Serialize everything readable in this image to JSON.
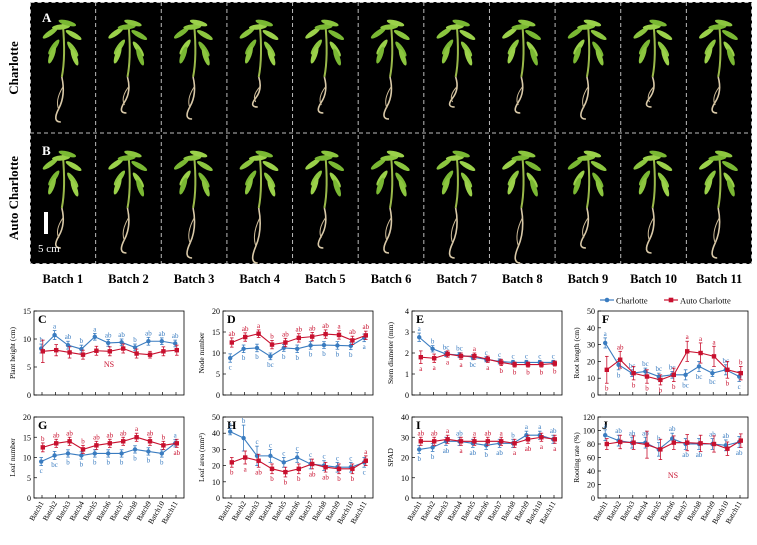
{
  "photo_panel": {
    "row_labels": [
      "Charlotte",
      "Auto Charlotte"
    ],
    "panel_letters": [
      "A",
      "B"
    ],
    "scale_bar_label": "5 cm"
  },
  "batches": [
    "Batch 1",
    "Batch 2",
    "Batch 3",
    "Batch 4",
    "Batch 5",
    "Batch 6",
    "Batch 7",
    "Batch 8",
    "Batch 9",
    "Batch 10",
    "Batch 11"
  ],
  "legend": {
    "items": [
      {
        "name": "Charlotte",
        "color": "#3A7CC0"
      },
      {
        "name": "Auto Charlotte",
        "color": "#C8102E"
      }
    ]
  },
  "chart_data": [
    {
      "type": "line",
      "panel": "C",
      "ylabel": "Plant height (cm)",
      "ylim": [
        0,
        15
      ],
      "yticks": [
        0,
        5,
        10,
        15
      ],
      "categories": [
        "Batch1",
        "Batch2",
        "Batch3",
        "Batch4",
        "Batch5",
        "Batch6",
        "Batch7",
        "Batch8",
        "Batch9",
        "Batch10",
        "Batch11"
      ],
      "series": [
        {
          "name": "Charlotte",
          "values": [
            8.3,
            10.7,
            8.9,
            8.2,
            10.4,
            9.3,
            9.4,
            8.5,
            9.6,
            9.6,
            9.2
          ],
          "err": [
            0.8,
            0.8,
            0.7,
            0.7,
            0.6,
            0.6,
            0.6,
            0.6,
            0.7,
            0.6,
            0.6
          ],
          "letters": [
            "b",
            "a",
            "ab",
            "b",
            "a",
            "ab",
            "ab",
            "b",
            "ab",
            "ab",
            "ab"
          ]
        },
        {
          "name": "Auto Charlotte",
          "values": [
            7.8,
            8.0,
            7.6,
            7.2,
            7.9,
            7.8,
            8.3,
            7.4,
            7.2,
            7.8,
            8.0
          ],
          "err": [
            2.0,
            1.0,
            1.0,
            0.8,
            0.8,
            0.8,
            0.8,
            0.8,
            0.6,
            0.8,
            0.9
          ],
          "letters": []
        }
      ],
      "annotation": "NS"
    },
    {
      "type": "line",
      "panel": "D",
      "ylabel": "Node number",
      "ylim": [
        0,
        20
      ],
      "yticks": [
        0,
        5,
        10,
        15,
        20
      ],
      "categories": [
        "Batch1",
        "Batch2",
        "Batch3",
        "Batch4",
        "Batch5",
        "Batch6",
        "Batch7",
        "Batch8",
        "Batch9",
        "Batch10",
        "Batch11"
      ],
      "series": [
        {
          "name": "Charlotte",
          "values": [
            8.8,
            11.0,
            11.2,
            9.2,
            11.2,
            11.0,
            11.8,
            11.9,
            11.8,
            11.7,
            13.6
          ],
          "err": [
            1.0,
            0.9,
            0.9,
            0.8,
            0.8,
            0.9,
            0.9,
            0.8,
            0.9,
            0.9,
            0.9
          ],
          "letters": [
            "c",
            "b",
            "b",
            "bc",
            "b",
            "b",
            "b",
            "b",
            "b",
            "b",
            "a"
          ]
        },
        {
          "name": "Auto Charlotte",
          "values": [
            12.5,
            13.8,
            14.6,
            12.0,
            12.5,
            13.6,
            13.9,
            14.5,
            14.3,
            13.0,
            14.2
          ],
          "err": [
            1.1,
            1.0,
            0.9,
            1.0,
            1.0,
            1.0,
            1.0,
            1.0,
            1.0,
            1.0,
            1.0
          ],
          "letters": [
            "ab",
            "ab",
            "a",
            "b",
            "ab",
            "ab",
            "ab",
            "ab",
            "a",
            "ab",
            "ab"
          ]
        }
      ]
    },
    {
      "type": "line",
      "panel": "E",
      "ylabel": "Stem diameter (mm)",
      "ylim": [
        0,
        4
      ],
      "yticks": [
        0,
        1,
        2,
        3,
        4
      ],
      "categories": [
        "Batch1",
        "Batch2",
        "Batch3",
        "Batch4",
        "Batch5",
        "Batch6",
        "Batch7",
        "Batch8",
        "Batch9",
        "Batch10",
        "Batch11"
      ],
      "series": [
        {
          "name": "Charlotte",
          "values": [
            2.75,
            2.2,
            1.95,
            1.9,
            1.8,
            1.7,
            1.6,
            1.55,
            1.55,
            1.55,
            1.55
          ],
          "err": [
            0.2,
            0.15,
            0.12,
            0.12,
            0.12,
            0.12,
            0.12,
            0.1,
            0.1,
            0.1,
            0.1
          ],
          "letters": [
            "a",
            "b",
            "bc",
            "bc",
            "bc",
            "c",
            "c",
            "c",
            "c",
            "c",
            "c"
          ]
        },
        {
          "name": "Auto Charlotte",
          "values": [
            1.8,
            1.75,
            1.95,
            1.85,
            1.85,
            1.7,
            1.55,
            1.45,
            1.45,
            1.45,
            1.5
          ],
          "err": [
            0.3,
            0.2,
            0.15,
            0.15,
            0.15,
            0.15,
            0.15,
            0.12,
            0.12,
            0.12,
            0.12
          ],
          "letters": [
            "a",
            "a",
            "a",
            "a",
            "a",
            "a",
            "b",
            "b",
            "b",
            "b",
            "b"
          ]
        }
      ]
    },
    {
      "type": "line",
      "panel": "F",
      "ylabel": "Root length (cm)",
      "ylim": [
        0,
        50
      ],
      "yticks": [
        0,
        10,
        20,
        30,
        40,
        50
      ],
      "categories": [
        "Batch1",
        "Batch2",
        "Batch3",
        "Batch4",
        "Batch5",
        "Batch6",
        "Batch7",
        "Batch8",
        "Batch9",
        "Batch10",
        "Batch11"
      ],
      "series": [
        {
          "name": "Charlotte",
          "values": [
            31,
            18,
            13,
            14,
            11,
            12,
            12,
            17,
            13,
            15,
            11
          ],
          "err": [
            3,
            3,
            2,
            2,
            2,
            2,
            3,
            3,
            2,
            3,
            3
          ],
          "letters": [
            "a",
            "b",
            "bc",
            "bc",
            "bc",
            "bc",
            "bc",
            "bc",
            "bc",
            "bc",
            "c"
          ]
        },
        {
          "name": "Auto Charlotte",
          "values": [
            15,
            21,
            13,
            11,
            9,
            12,
            26,
            25,
            23,
            15,
            13
          ],
          "err": [
            8,
            5,
            4,
            4,
            3,
            4,
            6,
            6,
            6,
            5,
            4
          ],
          "letters": [
            "b",
            "ab",
            "b",
            "b",
            "b",
            "b",
            "a",
            "a",
            "a",
            "b",
            "b"
          ]
        }
      ]
    },
    {
      "type": "line",
      "panel": "G",
      "ylabel": "Leaf number",
      "ylim": [
        0,
        20
      ],
      "yticks": [
        0,
        5,
        10,
        15,
        20
      ],
      "categories": [
        "Batch1",
        "Batch2",
        "Batch3",
        "Batch4",
        "Batch5",
        "Batch6",
        "Batch7",
        "Batch8",
        "Batch9",
        "Batch10",
        "Batch11"
      ],
      "series": [
        {
          "name": "Charlotte",
          "values": [
            9.0,
            10.5,
            11.0,
            10.5,
            11.0,
            11.0,
            11.0,
            12.0,
            11.5,
            11.0,
            13.5
          ],
          "err": [
            1.0,
            1.0,
            0.9,
            0.9,
            0.9,
            0.9,
            0.9,
            0.9,
            0.9,
            0.9,
            0.9
          ],
          "letters": [
            "c",
            "bc",
            "b",
            "b",
            "b",
            "b",
            "b",
            "b",
            "b",
            "b",
            "a"
          ]
        },
        {
          "name": "Auto Charlotte",
          "values": [
            12.5,
            13.5,
            14.0,
            12.0,
            13.0,
            13.5,
            14.0,
            15.0,
            14.0,
            13.0,
            13.5
          ],
          "err": [
            1.1,
            1.0,
            1.0,
            1.0,
            1.0,
            1.0,
            1.0,
            1.0,
            1.0,
            1.0,
            1.0
          ],
          "letters": [
            "b",
            "ab",
            "ab",
            "b",
            "ab",
            "ab",
            "ab",
            "a",
            "ab",
            "b",
            "ab"
          ]
        }
      ]
    },
    {
      "type": "line",
      "panel": "H",
      "ylabel": "Leaf area (mm²)",
      "ylim": [
        0,
        50
      ],
      "yticks": [
        0,
        10,
        20,
        30,
        40,
        50
      ],
      "categories": [
        "Batch1",
        "Batch2",
        "Batch3",
        "Batch4",
        "Batch5",
        "Batch6",
        "Batch7",
        "Batch8",
        "Batch9",
        "Batch10",
        "Batch11"
      ],
      "series": [
        {
          "name": "Charlotte",
          "values": [
            41,
            37,
            26,
            26,
            22,
            25,
            21,
            20,
            19,
            19,
            22
          ],
          "err": [
            2,
            8,
            6,
            4,
            3,
            3,
            3,
            3,
            3,
            3,
            3
          ],
          "letters": [
            "a",
            "b",
            "c",
            "c",
            "c",
            "c",
            "c",
            "c",
            "c",
            "c",
            "c"
          ]
        },
        {
          "name": "Auto Charlotte",
          "values": [
            22,
            25,
            23,
            18,
            16,
            18,
            21,
            19,
            18,
            18,
            23
          ],
          "err": [
            3,
            4,
            4,
            3,
            3,
            3,
            3,
            3,
            3,
            3,
            3
          ],
          "letters": [
            "b",
            "a",
            "ab",
            "b",
            "b",
            "b",
            "ab",
            "ab",
            "b",
            "b",
            "a"
          ]
        }
      ]
    },
    {
      "type": "line",
      "panel": "I",
      "ylabel": "SPAD",
      "ylim": [
        0,
        40
      ],
      "yticks": [
        0,
        10,
        20,
        30,
        40
      ],
      "categories": [
        "Batch1",
        "Batch2",
        "Batch3",
        "Batch4",
        "Batch5",
        "Batch6",
        "Batch7",
        "Batch8",
        "Batch9",
        "Batch10",
        "Batch11"
      ],
      "series": [
        {
          "name": "Charlotte",
          "values": [
            24,
            25,
            28,
            28,
            27,
            26,
            27,
            27,
            31,
            31,
            29
          ],
          "err": [
            2,
            2,
            2,
            2,
            2,
            2,
            2,
            2,
            2,
            2,
            2
          ],
          "letters": [
            "b",
            "b",
            "ab",
            "ab",
            "ab",
            "b",
            "ab",
            "b",
            "a",
            "a",
            "ab"
          ]
        },
        {
          "name": "Auto Charlotte",
          "values": [
            28,
            28,
            29,
            28,
            28,
            28,
            28,
            27,
            29,
            30,
            29
          ],
          "err": [
            2,
            2,
            2,
            2,
            2,
            2,
            2,
            2,
            2,
            2,
            2
          ],
          "letters": [
            "ab",
            "ab",
            "a",
            "a",
            "a",
            "ab",
            "a",
            "a",
            "ab",
            "a",
            "a"
          ]
        }
      ]
    },
    {
      "type": "line",
      "panel": "J",
      "ylabel": "Rooting rate (%)",
      "ylim": [
        0,
        120
      ],
      "yticks": [
        0,
        20,
        40,
        60,
        80,
        100,
        120
      ],
      "categories": [
        "Batch1",
        "Batch2",
        "Batch3",
        "Batch4",
        "Batch5",
        "Batch6",
        "Batch7",
        "Batch8",
        "Batch9",
        "Batch10",
        "Batch11"
      ],
      "series": [
        {
          "name": "Charlotte",
          "values": [
            93,
            85,
            82,
            82,
            72,
            88,
            80,
            80,
            80,
            78,
            83
          ],
          "err": [
            8,
            8,
            8,
            8,
            10,
            8,
            8,
            8,
            8,
            8,
            8
          ],
          "letters": [
            "a",
            "ab",
            "ab",
            "ab",
            "b",
            "ab",
            "ab",
            "ab",
            "ab",
            "ab",
            "ab"
          ]
        },
        {
          "name": "Auto Charlotte",
          "values": [
            80,
            83,
            82,
            79,
            72,
            82,
            82,
            81,
            80,
            73,
            85
          ],
          "err": [
            8,
            10,
            10,
            20,
            15,
            10,
            12,
            12,
            12,
            10,
            10
          ],
          "letters": []
        }
      ],
      "annotation": "NS"
    }
  ]
}
